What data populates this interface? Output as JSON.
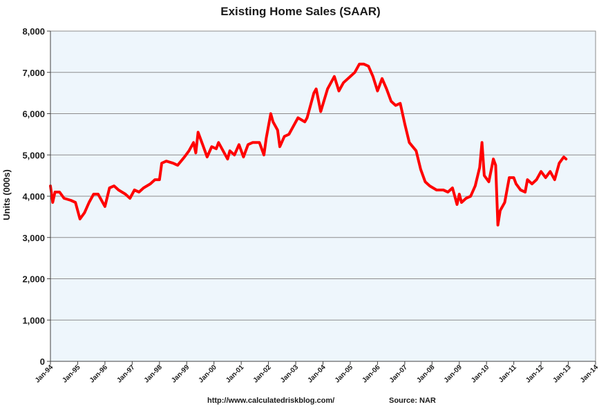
{
  "chart_data": {
    "type": "line",
    "title": "Existing Home Sales (SAAR)",
    "xlabel": "",
    "ylabel": "Units (000s)",
    "ylim": [
      0,
      8000
    ],
    "yticks": [
      "0",
      "1,000",
      "2,000",
      "3,000",
      "4,000",
      "5,000",
      "6,000",
      "7,000",
      "8,000"
    ],
    "xticks": [
      "Jan-94",
      "Jan-95",
      "Jan-96",
      "Jan-97",
      "Jan-98",
      "Jan-99",
      "Jan-00",
      "Jan-01",
      "Jan-02",
      "Jan-03",
      "Jan-04",
      "Jan-05",
      "Jan-06",
      "Jan-07",
      "Jan-08",
      "Jan-09",
      "Jan-10",
      "Jan-11",
      "Jan-12",
      "Jan-13",
      "Jan-14"
    ],
    "grid": true,
    "legend": "none",
    "series": [
      {
        "color": "#ff0000",
        "points": [
          [
            "1994-01",
            4250
          ],
          [
            "1994-02",
            3850
          ],
          [
            "1994-03",
            4100
          ],
          [
            "1994-05",
            4100
          ],
          [
            "1994-07",
            3950
          ],
          [
            "1994-10",
            3900
          ],
          [
            "1994-12",
            3850
          ],
          [
            "1995-02",
            3450
          ],
          [
            "1995-04",
            3600
          ],
          [
            "1995-06",
            3850
          ],
          [
            "1995-08",
            4050
          ],
          [
            "1995-10",
            4050
          ],
          [
            "1995-12",
            3850
          ],
          [
            "1996-01",
            3750
          ],
          [
            "1996-03",
            4200
          ],
          [
            "1996-05",
            4250
          ],
          [
            "1996-07",
            4150
          ],
          [
            "1996-10",
            4050
          ],
          [
            "1996-12",
            3950
          ],
          [
            "1997-02",
            4150
          ],
          [
            "1997-04",
            4100
          ],
          [
            "1997-06",
            4200
          ],
          [
            "1997-09",
            4300
          ],
          [
            "1997-11",
            4400
          ],
          [
            "1998-01",
            4400
          ],
          [
            "1998-02",
            4800
          ],
          [
            "1998-04",
            4850
          ],
          [
            "1998-07",
            4800
          ],
          [
            "1998-09",
            4750
          ],
          [
            "1998-12",
            4950
          ],
          [
            "1999-02",
            5100
          ],
          [
            "1999-04",
            5300
          ],
          [
            "1999-05",
            5050
          ],
          [
            "1999-06",
            5550
          ],
          [
            "1999-08",
            5250
          ],
          [
            "1999-10",
            4950
          ],
          [
            "1999-12",
            5200
          ],
          [
            "2000-02",
            5150
          ],
          [
            "2000-03",
            5300
          ],
          [
            "2000-05",
            5100
          ],
          [
            "2000-07",
            4900
          ],
          [
            "2000-08",
            5100
          ],
          [
            "2000-10",
            5000
          ],
          [
            "2000-12",
            5250
          ],
          [
            "2001-02",
            4950
          ],
          [
            "2001-04",
            5250
          ],
          [
            "2001-06",
            5300
          ],
          [
            "2001-09",
            5300
          ],
          [
            "2001-11",
            5000
          ],
          [
            "2001-12",
            5400
          ],
          [
            "2002-02",
            6000
          ],
          [
            "2002-03",
            5800
          ],
          [
            "2002-05",
            5600
          ],
          [
            "2002-06",
            5200
          ],
          [
            "2002-08",
            5450
          ],
          [
            "2002-10",
            5500
          ],
          [
            "2002-12",
            5700
          ],
          [
            "2003-02",
            5900
          ],
          [
            "2003-05",
            5800
          ],
          [
            "2003-06",
            5900
          ],
          [
            "2003-09",
            6500
          ],
          [
            "2003-10",
            6600
          ],
          [
            "2003-12",
            6050
          ],
          [
            "2004-03",
            6600
          ],
          [
            "2004-06",
            6900
          ],
          [
            "2004-08",
            6550
          ],
          [
            "2004-10",
            6750
          ],
          [
            "2004-12",
            6850
          ],
          [
            "2005-03",
            7000
          ],
          [
            "2005-05",
            7200
          ],
          [
            "2005-07",
            7200
          ],
          [
            "2005-09",
            7150
          ],
          [
            "2005-11",
            6900
          ],
          [
            "2006-01",
            6550
          ],
          [
            "2006-03",
            6850
          ],
          [
            "2006-05",
            6600
          ],
          [
            "2006-07",
            6300
          ],
          [
            "2006-09",
            6200
          ],
          [
            "2006-11",
            6250
          ],
          [
            "2007-01",
            5750
          ],
          [
            "2007-03",
            5300
          ],
          [
            "2007-06",
            5100
          ],
          [
            "2007-08",
            4650
          ],
          [
            "2007-10",
            4350
          ],
          [
            "2007-12",
            4250
          ],
          [
            "2008-03",
            4150
          ],
          [
            "2008-06",
            4150
          ],
          [
            "2008-08",
            4100
          ],
          [
            "2008-10",
            4200
          ],
          [
            "2008-12",
            3800
          ],
          [
            "2009-01",
            4050
          ],
          [
            "2009-02",
            3850
          ],
          [
            "2009-04",
            3950
          ],
          [
            "2009-06",
            4000
          ],
          [
            "2009-08",
            4250
          ],
          [
            "2009-10",
            4700
          ],
          [
            "2009-11",
            5300
          ],
          [
            "2009-12",
            4500
          ],
          [
            "2010-02",
            4350
          ],
          [
            "2010-04",
            4900
          ],
          [
            "2010-05",
            4750
          ],
          [
            "2010-06",
            3300
          ],
          [
            "2010-07",
            3650
          ],
          [
            "2010-09",
            3850
          ],
          [
            "2010-11",
            4450
          ],
          [
            "2011-01",
            4450
          ],
          [
            "2011-02",
            4300
          ],
          [
            "2011-04",
            4150
          ],
          [
            "2011-06",
            4100
          ],
          [
            "2011-07",
            4400
          ],
          [
            "2011-09",
            4300
          ],
          [
            "2011-11",
            4400
          ],
          [
            "2012-01",
            4600
          ],
          [
            "2012-03",
            4450
          ],
          [
            "2012-05",
            4600
          ],
          [
            "2012-07",
            4400
          ],
          [
            "2012-09",
            4800
          ],
          [
            "2012-11",
            4950
          ],
          [
            "2012-12",
            4900
          ]
        ]
      }
    ]
  },
  "footer": {
    "url": "http://www.calculatedriskblog.com/",
    "source": "Source: NAR"
  }
}
